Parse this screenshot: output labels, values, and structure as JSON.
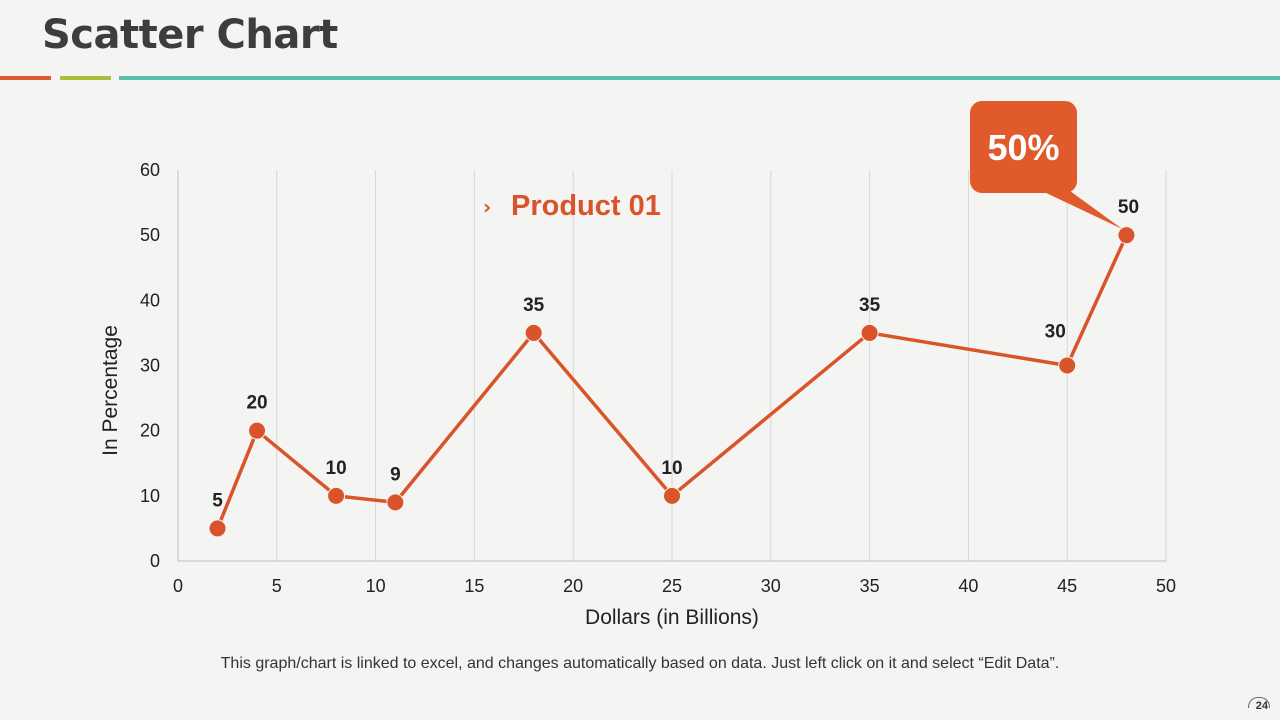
{
  "slide": {
    "title": "Scatter Chart",
    "footer_note": "This graph/chart is linked to excel, and changes automatically based on data. Just left click on it and select “Edit Data”.",
    "page_number": "24"
  },
  "colors": {
    "series": "#d9542a",
    "callout": "#e05a2b",
    "accent_red": "#e05a2b",
    "accent_green": "#a8bf3d",
    "accent_teal": "#5cbfae"
  },
  "chart_data": {
    "type": "scatter",
    "title": "",
    "xlabel": "Dollars (in Billions)",
    "ylabel": "In Percentage",
    "xlim": [
      0,
      50
    ],
    "ylim": [
      0,
      60
    ],
    "x_ticks": [
      "0",
      "5",
      "10",
      "15",
      "20",
      "25",
      "30",
      "35",
      "40",
      "45",
      "50"
    ],
    "y_ticks": [
      "0",
      "10",
      "20",
      "30",
      "40",
      "50",
      "60"
    ],
    "grid": "vertical",
    "legend_position": "top-center",
    "series": [
      {
        "name": "Product 01",
        "x": [
          2,
          4,
          8,
          11,
          18,
          25,
          35,
          45,
          48
        ],
        "y": [
          5,
          20,
          10,
          9,
          35,
          10,
          35,
          30,
          50
        ],
        "data_labels": [
          "5",
          "20",
          "10",
          "9",
          "35",
          "10",
          "35",
          "30",
          "50"
        ]
      }
    ],
    "callout": {
      "text": "50%",
      "point_index": 8
    }
  }
}
